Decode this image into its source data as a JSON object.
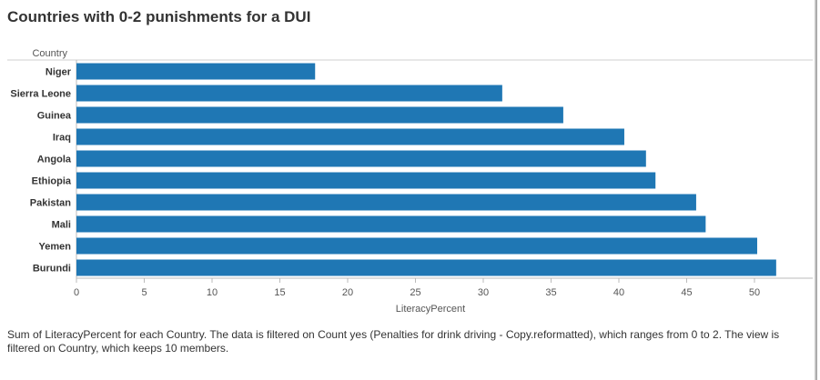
{
  "title": "Countries with 0-2 punishments for a DUI",
  "caption": "Sum of LiteracyPercent for each Country. The data is filtered on Count yes (Penalties for drink driving - Copy.reformatted), which ranges from 0 to 2. The view is filtered on Country, which keeps 10 members.",
  "colors": {
    "bar": "#1f77b4",
    "axis": "#bbbbbb",
    "text": "#333333"
  },
  "chart_data": {
    "type": "bar",
    "orientation": "horizontal",
    "row_header": "Country",
    "xlabel": "LiteracyPercent",
    "xlim": [
      0,
      52.5
    ],
    "xticks": [
      0,
      5,
      10,
      15,
      20,
      25,
      30,
      35,
      40,
      45,
      50
    ],
    "grid": false,
    "categories": [
      "Niger",
      "Sierra Leone",
      "Guinea",
      "Iraq",
      "Angola",
      "Ethiopia",
      "Pakistan",
      "Mali",
      "Yemen",
      "Burundi"
    ],
    "values": [
      17.6,
      31.4,
      35.9,
      40.4,
      42.0,
      42.7,
      45.7,
      46.4,
      50.2,
      51.6
    ]
  }
}
